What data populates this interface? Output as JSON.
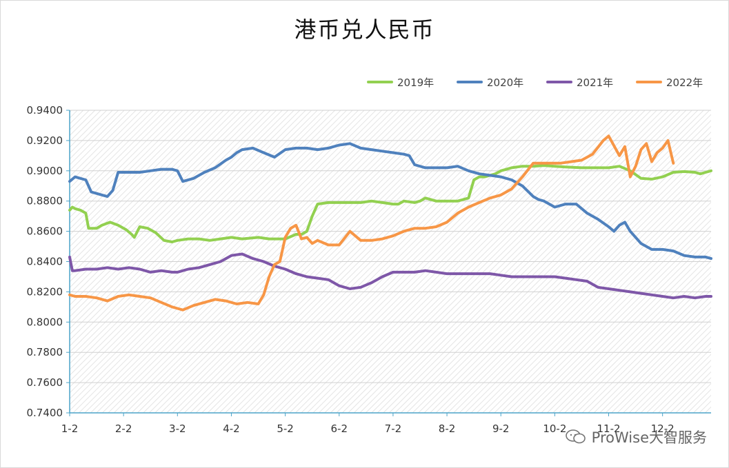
{
  "chart_data": {
    "type": "line",
    "title": "港币兑人民币",
    "xlabel": "",
    "ylabel": "",
    "ylim": [
      0.74,
      0.94
    ],
    "yticks": [
      0.94,
      0.92,
      0.9,
      0.88,
      0.86,
      0.84,
      0.82,
      0.8,
      0.78,
      0.76,
      0.74
    ],
    "ytick_labels": [
      "0.9400",
      "0.9200",
      "0.9000",
      "0.8800",
      "0.8600",
      "0.8400",
      "0.8200",
      "0.8000",
      "0.7800",
      "0.7600",
      "0.7400"
    ],
    "xlim": [
      1,
      12.9
    ],
    "xticks": [
      1,
      2,
      3,
      4,
      5,
      6,
      7,
      8,
      9,
      10,
      11,
      12
    ],
    "xtick_labels": [
      "1-2",
      "2-2",
      "3-2",
      "4-2",
      "5-2",
      "6-2",
      "7-2",
      "8-2",
      "9-2",
      "10-2",
      "11-2",
      "12-2"
    ],
    "legend_position": "top-right",
    "series": [
      {
        "name": "2019年",
        "color": "#92d050",
        "x": [
          1.0,
          1.05,
          1.1,
          1.2,
          1.3,
          1.35,
          1.5,
          1.6,
          1.75,
          1.9,
          2.05,
          2.15,
          2.2,
          2.3,
          2.45,
          2.6,
          2.75,
          2.9,
          3.0,
          3.2,
          3.4,
          3.6,
          3.8,
          4.0,
          4.2,
          4.5,
          4.7,
          5.0,
          5.2,
          5.3,
          5.4,
          5.5,
          5.6,
          5.8,
          6.0,
          6.2,
          6.4,
          6.6,
          6.8,
          7.0,
          7.1,
          7.2,
          7.4,
          7.5,
          7.6,
          7.8,
          8.0,
          8.2,
          8.3,
          8.4,
          8.5,
          8.6,
          8.7,
          8.9,
          9.0,
          9.2,
          9.4,
          9.6,
          9.8,
          10.0,
          10.2,
          10.5,
          10.8,
          11.0,
          11.2,
          11.4,
          11.6,
          11.8,
          12.0,
          12.2,
          12.4,
          12.6,
          12.7,
          12.8,
          12.9
        ],
        "values": [
          0.874,
          0.876,
          0.875,
          0.874,
          0.872,
          0.862,
          0.862,
          0.864,
          0.866,
          0.864,
          0.861,
          0.858,
          0.856,
          0.863,
          0.862,
          0.859,
          0.854,
          0.853,
          0.854,
          0.855,
          0.855,
          0.854,
          0.855,
          0.856,
          0.855,
          0.856,
          0.855,
          0.855,
          0.858,
          0.858,
          0.86,
          0.87,
          0.878,
          0.879,
          0.879,
          0.879,
          0.879,
          0.88,
          0.879,
          0.878,
          0.878,
          0.88,
          0.879,
          0.88,
          0.882,
          0.88,
          0.88,
          0.88,
          0.881,
          0.882,
          0.894,
          0.896,
          0.896,
          0.898,
          0.9,
          0.902,
          0.903,
          0.903,
          0.9035,
          0.903,
          0.9025,
          0.902,
          0.902,
          0.902,
          0.903,
          0.9,
          0.895,
          0.8945,
          0.896,
          0.899,
          0.8995,
          0.899,
          0.898,
          0.899,
          0.9
        ]
      },
      {
        "name": "2020年",
        "color": "#4f81bd",
        "x": [
          1.0,
          1.1,
          1.2,
          1.3,
          1.4,
          1.5,
          1.6,
          1.7,
          1.8,
          1.9,
          2.0,
          2.1,
          2.3,
          2.5,
          2.7,
          2.9,
          3.0,
          3.1,
          3.3,
          3.5,
          3.7,
          3.9,
          4.0,
          4.1,
          4.2,
          4.4,
          4.6,
          4.8,
          5.0,
          5.2,
          5.4,
          5.6,
          5.8,
          5.9,
          6.0,
          6.2,
          6.4,
          6.6,
          6.8,
          7.0,
          7.2,
          7.3,
          7.4,
          7.6,
          7.8,
          8.0,
          8.2,
          8.4,
          8.6,
          8.8,
          9.0,
          9.2,
          9.4,
          9.6,
          9.7,
          9.8,
          10.0,
          10.2,
          10.4,
          10.6,
          10.8,
          11.0,
          11.1,
          11.2,
          11.3,
          11.4,
          11.6,
          11.8,
          12.0,
          12.2,
          12.4,
          12.6,
          12.8,
          12.9
        ],
        "values": [
          0.893,
          0.896,
          0.895,
          0.894,
          0.886,
          0.885,
          0.884,
          0.883,
          0.887,
          0.899,
          0.899,
          0.899,
          0.899,
          0.9,
          0.901,
          0.901,
          0.9,
          0.893,
          0.895,
          0.899,
          0.902,
          0.907,
          0.909,
          0.912,
          0.914,
          0.915,
          0.912,
          0.909,
          0.914,
          0.915,
          0.915,
          0.914,
          0.915,
          0.916,
          0.917,
          0.918,
          0.915,
          0.914,
          0.913,
          0.912,
          0.911,
          0.91,
          0.904,
          0.902,
          0.902,
          0.902,
          0.903,
          0.9,
          0.898,
          0.897,
          0.896,
          0.894,
          0.89,
          0.883,
          0.881,
          0.88,
          0.876,
          0.878,
          0.878,
          0.872,
          0.868,
          0.863,
          0.86,
          0.864,
          0.866,
          0.86,
          0.852,
          0.848,
          0.848,
          0.847,
          0.844,
          0.843,
          0.843,
          0.842
        ]
      },
      {
        "name": "2021年",
        "color": "#7e57a8",
        "x": [
          1.0,
          1.05,
          1.1,
          1.3,
          1.5,
          1.7,
          1.9,
          2.1,
          2.3,
          2.5,
          2.7,
          2.9,
          3.0,
          3.2,
          3.4,
          3.6,
          3.8,
          4.0,
          4.2,
          4.4,
          4.6,
          4.8,
          5.0,
          5.2,
          5.4,
          5.6,
          5.8,
          6.0,
          6.2,
          6.4,
          6.6,
          6.8,
          7.0,
          7.2,
          7.4,
          7.6,
          7.8,
          8.0,
          8.2,
          8.4,
          8.6,
          8.8,
          9.0,
          9.2,
          9.4,
          9.6,
          9.8,
          10.0,
          10.2,
          10.4,
          10.6,
          10.8,
          11.0,
          11.2,
          11.4,
          11.6,
          11.8,
          12.0,
          12.2,
          12.4,
          12.6,
          12.8,
          12.9
        ],
        "values": [
          0.843,
          0.834,
          0.834,
          0.835,
          0.835,
          0.836,
          0.835,
          0.836,
          0.835,
          0.833,
          0.834,
          0.833,
          0.833,
          0.835,
          0.836,
          0.838,
          0.84,
          0.844,
          0.845,
          0.842,
          0.84,
          0.837,
          0.835,
          0.832,
          0.83,
          0.829,
          0.828,
          0.824,
          0.822,
          0.823,
          0.826,
          0.83,
          0.833,
          0.833,
          0.833,
          0.834,
          0.833,
          0.832,
          0.832,
          0.832,
          0.832,
          0.832,
          0.831,
          0.83,
          0.83,
          0.83,
          0.83,
          0.83,
          0.829,
          0.828,
          0.827,
          0.823,
          0.822,
          0.821,
          0.82,
          0.819,
          0.818,
          0.817,
          0.816,
          0.817,
          0.816,
          0.817,
          0.817
        ]
      },
      {
        "name": "2022年",
        "color": "#f79646",
        "x": [
          1.0,
          1.1,
          1.3,
          1.5,
          1.7,
          1.9,
          2.1,
          2.3,
          2.5,
          2.7,
          2.9,
          3.0,
          3.1,
          3.3,
          3.5,
          3.7,
          3.9,
          4.1,
          4.3,
          4.5,
          4.6,
          4.7,
          4.8,
          4.9,
          5.0,
          5.1,
          5.2,
          5.3,
          5.4,
          5.5,
          5.6,
          5.8,
          6.0,
          6.2,
          6.4,
          6.6,
          6.8,
          7.0,
          7.2,
          7.4,
          7.6,
          7.8,
          8.0,
          8.2,
          8.4,
          8.6,
          8.8,
          9.0,
          9.2,
          9.4,
          9.6,
          9.8,
          10.0,
          10.1,
          10.3,
          10.5,
          10.7,
          10.9,
          11.0,
          11.2,
          11.3,
          11.4,
          11.5,
          11.6,
          11.7,
          11.8,
          11.9,
          12.0,
          12.1,
          12.2
        ],
        "values": [
          0.818,
          0.817,
          0.817,
          0.816,
          0.814,
          0.817,
          0.818,
          0.817,
          0.816,
          0.813,
          0.81,
          0.809,
          0.808,
          0.811,
          0.813,
          0.815,
          0.814,
          0.812,
          0.813,
          0.812,
          0.818,
          0.83,
          0.838,
          0.84,
          0.856,
          0.862,
          0.864,
          0.855,
          0.856,
          0.852,
          0.854,
          0.851,
          0.851,
          0.86,
          0.854,
          0.854,
          0.855,
          0.857,
          0.86,
          0.862,
          0.862,
          0.863,
          0.866,
          0.872,
          0.876,
          0.879,
          0.882,
          0.884,
          0.888,
          0.896,
          0.905,
          0.905,
          0.905,
          0.905,
          0.906,
          0.907,
          0.911,
          0.92,
          0.923,
          0.91,
          0.916,
          0.896,
          0.903,
          0.914,
          0.918,
          0.906,
          0.912,
          0.915,
          0.92,
          0.905
        ]
      }
    ]
  },
  "watermark_text": "ProWise大智服务"
}
